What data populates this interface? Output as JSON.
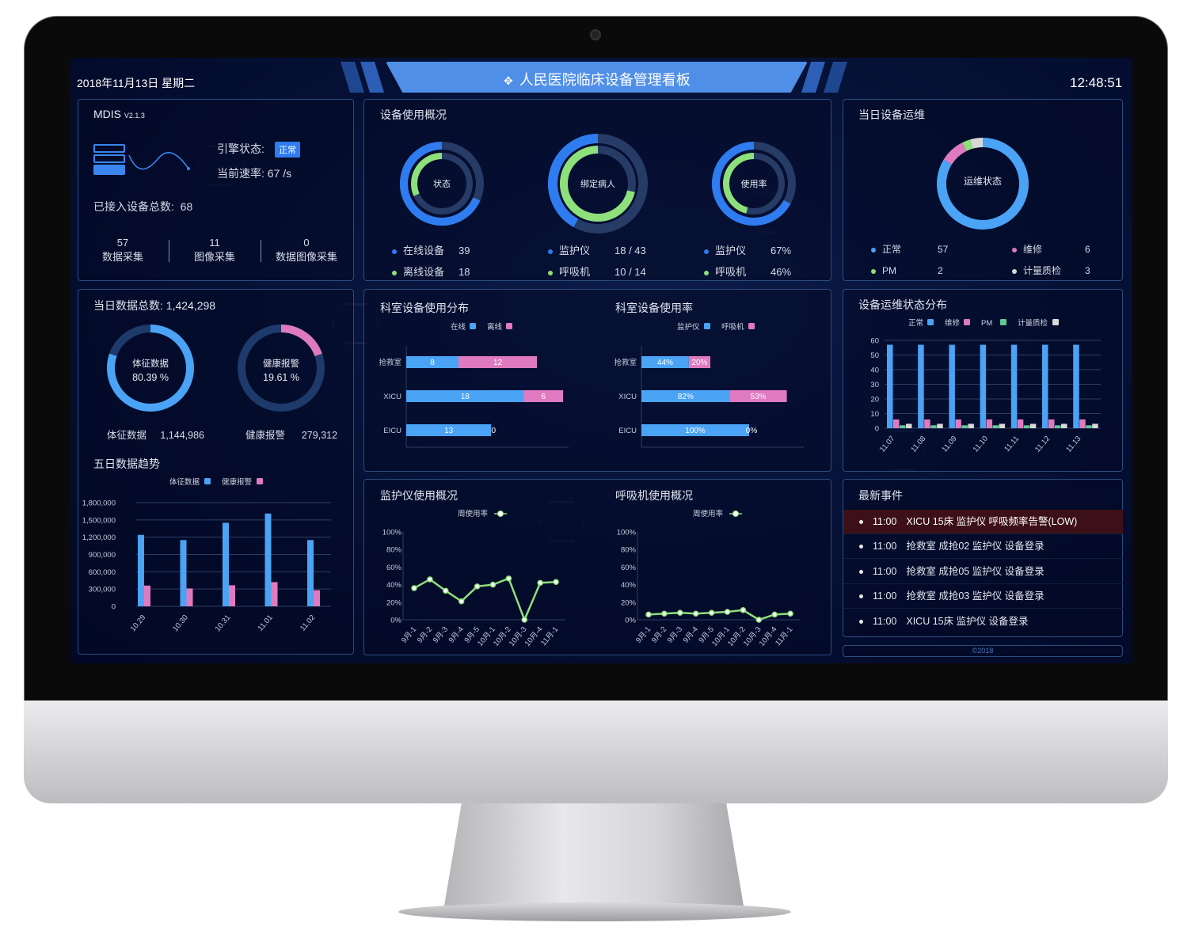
{
  "header": {
    "date": "2018年11月13日 星期二",
    "title": "人民医院临床设备管理看板",
    "clock": "12:48:51",
    "logo_icon": "puzzle-logo-icon"
  },
  "system": {
    "name": "MDIS",
    "version": "V2.1.3",
    "engine_label": "引擎状态:",
    "engine_status": "正常",
    "rate_label": "当前速率:",
    "rate_value": "67 /s",
    "total_label": "已接入设备总数:",
    "total_value": "68",
    "stats": [
      {
        "value": "57",
        "label": "数据采集"
      },
      {
        "value": "11",
        "label": "图像采集"
      },
      {
        "value": "0",
        "label": "数据图像采集"
      }
    ]
  },
  "usage": {
    "title": "设备使用概况",
    "donuts": [
      {
        "center": "状态",
        "outer_fraction": 0.684,
        "inner_fraction": 0.316,
        "legend": [
          {
            "label": "在线设备",
            "value": "39"
          },
          {
            "label": "离线设备",
            "value": "18"
          }
        ]
      },
      {
        "center": "绑定病人",
        "outer_fraction": 0.419,
        "inner_fraction": 0.714,
        "legend": [
          {
            "label": "监护仪",
            "value": "18 / 43"
          },
          {
            "label": "呼吸机",
            "value": "10 / 14"
          }
        ]
      },
      {
        "center": "使用率",
        "outer_fraction": 0.67,
        "inner_fraction": 0.46,
        "legend": [
          {
            "label": "监护仪",
            "value": "67%"
          },
          {
            "label": "呼吸机",
            "value": "46%"
          }
        ]
      }
    ]
  },
  "maintenance": {
    "title": "当日设备运维",
    "center": "运维状态",
    "items": [
      {
        "label": "正常",
        "value": 57,
        "color": "#4aa3f5"
      },
      {
        "label": "维修",
        "value": 6,
        "color": "#e07ac0"
      },
      {
        "label": "PM",
        "value": 2,
        "color": "#8ee07a"
      },
      {
        "label": "计量质检",
        "value": 3,
        "color": "#d8d8d8"
      }
    ]
  },
  "daily": {
    "title_label": "当日数据总数:",
    "total": "1,424,298",
    "vital": {
      "center_label": "体征数据",
      "percent": "80.39 %",
      "fraction": 0.8039,
      "label": "体征数据",
      "value": "1,144,986",
      "color": "#4aa3f5"
    },
    "alarm": {
      "center_label": "健康报警",
      "percent": "19.61 %",
      "fraction": 0.1961,
      "label": "健康报警",
      "value": "279,312",
      "color": "#e07ac0"
    }
  },
  "trend": {
    "title": "五日数据趋势",
    "type": "bar",
    "categories": [
      "10.29",
      "10.30",
      "10.31",
      "11.01",
      "11.02"
    ],
    "series": [
      {
        "name": "体征数据",
        "color": "#4aa3f5",
        "values": [
          1240000,
          1150000,
          1450000,
          1610000,
          1150000
        ]
      },
      {
        "name": "健康报警",
        "color": "#e07ac0",
        "values": [
          360000,
          310000,
          365000,
          420000,
          280000
        ]
      }
    ],
    "ylim": [
      0,
      1800000
    ],
    "yticks": [
      "0",
      "300,000",
      "600,000",
      "900,000",
      "1,200,000",
      "1,500,000",
      "1,800,000"
    ]
  },
  "dept_dist": {
    "title": "科室设备使用分布",
    "type": "bar-horizontal-stacked",
    "categories": [
      "抢救室",
      "XICU",
      "EICU"
    ],
    "series": [
      {
        "name": "在线",
        "color": "#4aa3f5",
        "values": [
          8,
          18,
          13
        ],
        "labels": [
          "8",
          "18",
          "13"
        ]
      },
      {
        "name": "离线",
        "color": "#e07ac0",
        "values": [
          12,
          6,
          0
        ],
        "labels": [
          "12",
          "6",
          "0"
        ]
      }
    ]
  },
  "dept_rate": {
    "title": "科室设备使用率",
    "type": "bar-horizontal-stacked",
    "categories": [
      "抢救室",
      "XICU",
      "EICU"
    ],
    "series": [
      {
        "name": "监护仪",
        "color": "#4aa3f5",
        "values": [
          44,
          82,
          100
        ],
        "labels": [
          "44%",
          "82%",
          "100%"
        ]
      },
      {
        "name": "呼吸机",
        "color": "#e07ac0",
        "values": [
          20,
          53,
          0
        ],
        "labels": [
          "20%",
          "53%",
          "0%"
        ]
      }
    ]
  },
  "maint_dist": {
    "title": "设备运维状态分布",
    "type": "bar",
    "categories": [
      "11.07",
      "11.08",
      "11.09",
      "11.10",
      "11.11",
      "11.12",
      "11.13"
    ],
    "series": [
      {
        "name": "正常",
        "color": "#4aa3f5",
        "values": [
          57,
          57,
          57,
          57,
          57,
          57,
          57
        ]
      },
      {
        "name": "维修",
        "color": "#e07ac0",
        "values": [
          6,
          6,
          6,
          6,
          6,
          6,
          6
        ]
      },
      {
        "name": "PM",
        "color": "#5fc99a",
        "values": [
          2,
          2,
          2,
          2,
          2,
          2,
          2
        ]
      },
      {
        "name": "计量质检",
        "color": "#d8d8d8",
        "values": [
          3,
          3,
          3,
          3,
          3,
          3,
          3
        ]
      }
    ],
    "ylim": [
      0,
      60
    ],
    "yticks": [
      "0",
      "10",
      "20",
      "30",
      "40",
      "50",
      "60"
    ]
  },
  "monitor_usage": {
    "title": "监护仪使用概况",
    "type": "line",
    "categories": [
      "9月-1",
      "9月-2",
      "9月-3",
      "9月-4",
      "9月-5",
      "10月-1",
      "10月-2",
      "10月-3",
      "10月-4",
      "11月-1"
    ],
    "series": [
      {
        "name": "周使用率",
        "color": "#8ee07a",
        "values": [
          36,
          46,
          33,
          21,
          38,
          40,
          47,
          0,
          42,
          43
        ]
      }
    ],
    "ylim": [
      0,
      100
    ],
    "yticks": [
      "0%",
      "20%",
      "40%",
      "60%",
      "80%",
      "100%"
    ]
  },
  "vent_usage": {
    "title": "呼吸机使用概况",
    "type": "line",
    "categories": [
      "9月-1",
      "9月-2",
      "9月-3",
      "9月-4",
      "9月-5",
      "10月-1",
      "10月-2",
      "10月-3",
      "10月-4",
      "11月-1"
    ],
    "series": [
      {
        "name": "周使用率",
        "color": "#8ee07a",
        "values": [
          6,
          7,
          8,
          7,
          8,
          9,
          11,
          0,
          6,
          7
        ]
      }
    ],
    "ylim": [
      0,
      100
    ],
    "yticks": [
      "0%",
      "20%",
      "40%",
      "60%",
      "80%",
      "100%"
    ]
  },
  "events": {
    "title": "最新事件",
    "items": [
      {
        "time": "11:00",
        "text": "XICU 15床 监护仪 呼吸频率告警(LOW)",
        "alert": true
      },
      {
        "time": "11:00",
        "text": "抢救室 成抢02 监护仪 设备登录"
      },
      {
        "time": "11:00",
        "text": "抢救室 成抢05 监护仪 设备登录"
      },
      {
        "time": "11:00",
        "text": "抢救室 成抢03 监护仪 设备登录"
      },
      {
        "time": "11:00",
        "text": "XICU 15床 监护仪 设备登录"
      }
    ]
  },
  "footer": {
    "copyright": "©2018"
  },
  "colors": {
    "blue": "#2f7cf0",
    "chart_blue": "#4aa3f5",
    "green": "#8ee07a",
    "pink": "#e07ac0",
    "alert_row": "#3d1018"
  }
}
